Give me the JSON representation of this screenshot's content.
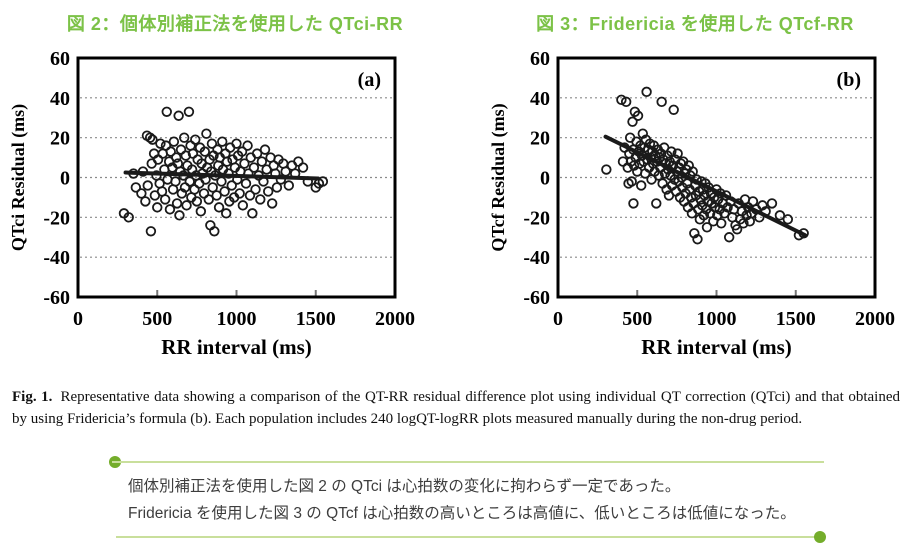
{
  "figure_titles": {
    "left": "図 2：個体別補正法を使用した QTci-RR",
    "right": "図 3：Fridericia を使用した QTcf-RR"
  },
  "colors": {
    "title_green": "#7cc247",
    "accent_dot_green": "#74ad2b",
    "rule_light_green": "#c9df9c",
    "plot_ink": "#1a1a1a",
    "grid_gray": "#8a8a8a"
  },
  "caption": {
    "label": "Fig. 1.",
    "text": "Representative data showing a comparison of the QT-RR residual difference plot using individual QT correction (QTci) and that obtained by using Fridericia’s formula (b). Each population includes 240 logQT-logRR plots measured manually during the non-drug period."
  },
  "summary": {
    "lines": [
      "個体別補正法を使用した図 2 の QTci は心拍数の変化に拘わらず一定であった。",
      "Fridericia を使用した図 3 の QTcf は心拍数の高いところは高値に、低いところは低値になった。"
    ]
  },
  "chart_data": [
    {
      "type": "scatter",
      "figure_title": "図 2：個体別補正法を使用した QTci-RR",
      "panel_label": "(a)",
      "xlabel": "RR interval (ms)",
      "ylabel": "QTci Residual (ms)",
      "xlim": [
        0,
        2000
      ],
      "ylim": [
        -60,
        60
      ],
      "xticks": [
        0,
        500,
        1000,
        1500,
        2000
      ],
      "yticks": [
        60,
        40,
        20,
        0,
        -20,
        -40,
        -60
      ],
      "gridlines_y": [
        40,
        20,
        0,
        -20,
        -40
      ],
      "grid_style": "dashed-horizontal",
      "legend": "none",
      "trend_line": [
        [
          300,
          2.5
        ],
        [
          1515,
          -0.5
        ]
      ],
      "points": [
        [
          290,
          -18
        ],
        [
          320,
          -20
        ],
        [
          350,
          2
        ],
        [
          365,
          -5
        ],
        [
          400,
          -8
        ],
        [
          410,
          3
        ],
        [
          425,
          -12
        ],
        [
          435,
          21
        ],
        [
          440,
          -4
        ],
        [
          455,
          20
        ],
        [
          460,
          -27
        ],
        [
          465,
          7
        ],
        [
          470,
          19
        ],
        [
          480,
          12
        ],
        [
          485,
          -9
        ],
        [
          495,
          1
        ],
        [
          500,
          -15
        ],
        [
          505,
          9
        ],
        [
          515,
          -3
        ],
        [
          520,
          17
        ],
        [
          530,
          -7
        ],
        [
          535,
          12
        ],
        [
          545,
          4
        ],
        [
          550,
          -11
        ],
        [
          555,
          16
        ],
        [
          560,
          33
        ],
        [
          565,
          -1
        ],
        [
          575,
          8
        ],
        [
          580,
          -16
        ],
        [
          585,
          13
        ],
        [
          595,
          5
        ],
        [
          600,
          -6
        ],
        [
          605,
          18
        ],
        [
          615,
          -2
        ],
        [
          620,
          10
        ],
        [
          625,
          -13
        ],
        [
          630,
          7
        ],
        [
          635,
          31
        ],
        [
          640,
          -19
        ],
        [
          645,
          3
        ],
        [
          650,
          14
        ],
        [
          655,
          -8
        ],
        [
          665,
          1
        ],
        [
          670,
          20
        ],
        [
          675,
          -5
        ],
        [
          680,
          11
        ],
        [
          685,
          -14
        ],
        [
          690,
          6
        ],
        [
          700,
          33
        ],
        [
          705,
          -2
        ],
        [
          710,
          16
        ],
        [
          715,
          -10
        ],
        [
          720,
          4
        ],
        [
          725,
          12
        ],
        [
          735,
          -6
        ],
        [
          740,
          19
        ],
        [
          745,
          1
        ],
        [
          750,
          -12
        ],
        [
          755,
          9
        ],
        [
          765,
          -3
        ],
        [
          770,
          15
        ],
        [
          775,
          -17
        ],
        [
          780,
          7
        ],
        [
          785,
          2
        ],
        [
          795,
          -8
        ],
        [
          800,
          13
        ],
        [
          805,
          -1
        ],
        [
          810,
          22
        ],
        [
          815,
          5
        ],
        [
          825,
          -11
        ],
        [
          830,
          9
        ],
        [
          835,
          -24
        ],
        [
          840,
          3
        ],
        [
          845,
          17
        ],
        [
          850,
          -5
        ],
        [
          855,
          11
        ],
        [
          860,
          -27
        ],
        [
          865,
          1
        ],
        [
          875,
          -9
        ],
        [
          880,
          14
        ],
        [
          885,
          6
        ],
        [
          890,
          -15
        ],
        [
          895,
          10
        ],
        [
          905,
          -2
        ],
        [
          910,
          18
        ],
        [
          915,
          4
        ],
        [
          925,
          -7
        ],
        [
          930,
          12
        ],
        [
          935,
          -18
        ],
        [
          940,
          8
        ],
        [
          950,
          2
        ],
        [
          955,
          -12
        ],
        [
          960,
          15
        ],
        [
          970,
          -4
        ],
        [
          975,
          9
        ],
        [
          985,
          -10
        ],
        [
          990,
          5
        ],
        [
          1000,
          17
        ],
        [
          1005,
          -1
        ],
        [
          1010,
          11
        ],
        [
          1020,
          -8
        ],
        [
          1025,
          3
        ],
        [
          1035,
          13
        ],
        [
          1040,
          -14
        ],
        [
          1050,
          7
        ],
        [
          1060,
          -3
        ],
        [
          1070,
          16
        ],
        [
          1075,
          2
        ],
        [
          1085,
          -9
        ],
        [
          1090,
          10
        ],
        [
          1100,
          -18
        ],
        [
          1110,
          5
        ],
        [
          1120,
          -6
        ],
        [
          1130,
          12
        ],
        [
          1140,
          1
        ],
        [
          1150,
          -11
        ],
        [
          1160,
          8
        ],
        [
          1170,
          -2
        ],
        [
          1180,
          14
        ],
        [
          1190,
          4
        ],
        [
          1200,
          -7
        ],
        [
          1215,
          10
        ],
        [
          1225,
          -13
        ],
        [
          1235,
          6
        ],
        [
          1245,
          2
        ],
        [
          1255,
          -5
        ],
        [
          1265,
          9
        ],
        [
          1280,
          -1
        ],
        [
          1295,
          7
        ],
        [
          1310,
          3
        ],
        [
          1330,
          -4
        ],
        [
          1350,
          6
        ],
        [
          1370,
          2
        ],
        [
          1390,
          8
        ],
        [
          1420,
          5
        ],
        [
          1450,
          -2
        ],
        [
          1500,
          -5
        ],
        [
          1520,
          -3
        ],
        [
          1545,
          -2
        ]
      ]
    },
    {
      "type": "scatter",
      "figure_title": "図 3：Fridericia を使用した QTcf-RR",
      "panel_label": "(b)",
      "xlabel": "RR interval (ms)",
      "ylabel": "QTcf Residual (ms)",
      "xlim": [
        0,
        2000
      ],
      "ylim": [
        -60,
        60
      ],
      "xticks": [
        0,
        500,
        1000,
        1500,
        2000
      ],
      "yticks": [
        60,
        40,
        20,
        0,
        -20,
        -40,
        -60
      ],
      "gridlines_y": [
        40,
        20,
        0,
        -20,
        -40
      ],
      "grid_style": "dashed-horizontal",
      "legend": "none",
      "trend_line": [
        [
          300,
          20.5
        ],
        [
          1560,
          -29
        ]
      ],
      "points": [
        [
          305,
          4
        ],
        [
          400,
          39
        ],
        [
          410,
          8
        ],
        [
          420,
          15
        ],
        [
          430,
          38
        ],
        [
          440,
          5
        ],
        [
          445,
          -3
        ],
        [
          450,
          12
        ],
        [
          455,
          20
        ],
        [
          460,
          8
        ],
        [
          465,
          -2
        ],
        [
          470,
          28
        ],
        [
          475,
          14
        ],
        [
          476,
          -13
        ],
        [
          480,
          6
        ],
        [
          485,
          33
        ],
        [
          490,
          10
        ],
        [
          495,
          18
        ],
        [
          500,
          3
        ],
        [
          505,
          31
        ],
        [
          510,
          13
        ],
        [
          515,
          7
        ],
        [
          520,
          16
        ],
        [
          525,
          -4
        ],
        [
          530,
          11
        ],
        [
          535,
          22
        ],
        [
          540,
          8
        ],
        [
          545,
          15
        ],
        [
          550,
          2
        ],
        [
          555,
          19
        ],
        [
          559,
          43
        ],
        [
          565,
          9
        ],
        [
          570,
          14
        ],
        [
          575,
          5
        ],
        [
          580,
          17
        ],
        [
          585,
          10
        ],
        [
          590,
          -1
        ],
        [
          595,
          13
        ],
        [
          600,
          7
        ],
        [
          605,
          16
        ],
        [
          610,
          3
        ],
        [
          615,
          11
        ],
        [
          620,
          -13
        ],
        [
          625,
          8
        ],
        [
          630,
          14
        ],
        [
          635,
          1
        ],
        [
          640,
          10
        ],
        [
          645,
          5
        ],
        [
          650,
          12
        ],
        [
          654,
          38
        ],
        [
          660,
          -3
        ],
        [
          665,
          9
        ],
        [
          670,
          15
        ],
        [
          675,
          2
        ],
        [
          680,
          7
        ],
        [
          685,
          -6
        ],
        [
          690,
          11
        ],
        [
          695,
          4
        ],
        [
          700,
          -9
        ],
        [
          705,
          8
        ],
        [
          710,
          1
        ],
        [
          715,
          13
        ],
        [
          720,
          -4
        ],
        [
          725,
          6
        ],
        [
          730,
          34
        ],
        [
          735,
          -1
        ],
        [
          740,
          9
        ],
        [
          745,
          -7
        ],
        [
          750,
          3
        ],
        [
          755,
          12
        ],
        [
          760,
          -2
        ],
        [
          765,
          5
        ],
        [
          770,
          -10
        ],
        [
          775,
          7
        ],
        [
          780,
          0
        ],
        [
          785,
          -5
        ],
        [
          790,
          8
        ],
        [
          795,
          -12
        ],
        [
          800,
          2
        ],
        [
          805,
          -8
        ],
        [
          810,
          4
        ],
        [
          815,
          -3
        ],
        [
          820,
          -15
        ],
        [
          825,
          6
        ],
        [
          830,
          -6
        ],
        [
          835,
          1
        ],
        [
          840,
          -10
        ],
        [
          845,
          -18
        ],
        [
          850,
          3
        ],
        [
          855,
          -13
        ],
        [
          860,
          -28
        ],
        [
          865,
          -4
        ],
        [
          870,
          -9
        ],
        [
          875,
          -1
        ],
        [
          880,
          -31
        ],
        [
          885,
          -16
        ],
        [
          890,
          -7
        ],
        [
          895,
          -21
        ],
        [
          900,
          -11
        ],
        [
          905,
          -2
        ],
        [
          910,
          -14
        ],
        [
          915,
          -6
        ],
        [
          920,
          -19
        ],
        [
          925,
          -9
        ],
        [
          930,
          -3
        ],
        [
          935,
          -16
        ],
        [
          940,
          -25
        ],
        [
          945,
          -12
        ],
        [
          950,
          -5
        ],
        [
          960,
          -18
        ],
        [
          965,
          -8
        ],
        [
          970,
          -13
        ],
        [
          980,
          -22
        ],
        [
          985,
          -10
        ],
        [
          990,
          -15
        ],
        [
          1000,
          -6
        ],
        [
          1005,
          -19
        ],
        [
          1010,
          -11
        ],
        [
          1020,
          -16
        ],
        [
          1025,
          -8
        ],
        [
          1030,
          -23
        ],
        [
          1040,
          -13
        ],
        [
          1050,
          -18
        ],
        [
          1060,
          -9
        ],
        [
          1070,
          -15
        ],
        [
          1080,
          -30
        ],
        [
          1090,
          -12
        ],
        [
          1100,
          -20
        ],
        [
          1110,
          -16
        ],
        [
          1120,
          -24
        ],
        [
          1130,
          -26
        ],
        [
          1140,
          -13
        ],
        [
          1150,
          -21
        ],
        [
          1160,
          -17
        ],
        [
          1170,
          -23
        ],
        [
          1180,
          -11
        ],
        [
          1190,
          -19
        ],
        [
          1200,
          -15
        ],
        [
          1210,
          -22
        ],
        [
          1220,
          -18
        ],
        [
          1230,
          -12
        ],
        [
          1250,
          -16
        ],
        [
          1270,
          -20
        ],
        [
          1290,
          -14
        ],
        [
          1310,
          -17
        ],
        [
          1350,
          -13
        ],
        [
          1400,
          -19
        ],
        [
          1450,
          -21
        ],
        [
          1520,
          -29
        ],
        [
          1550,
          -28
        ]
      ]
    }
  ]
}
